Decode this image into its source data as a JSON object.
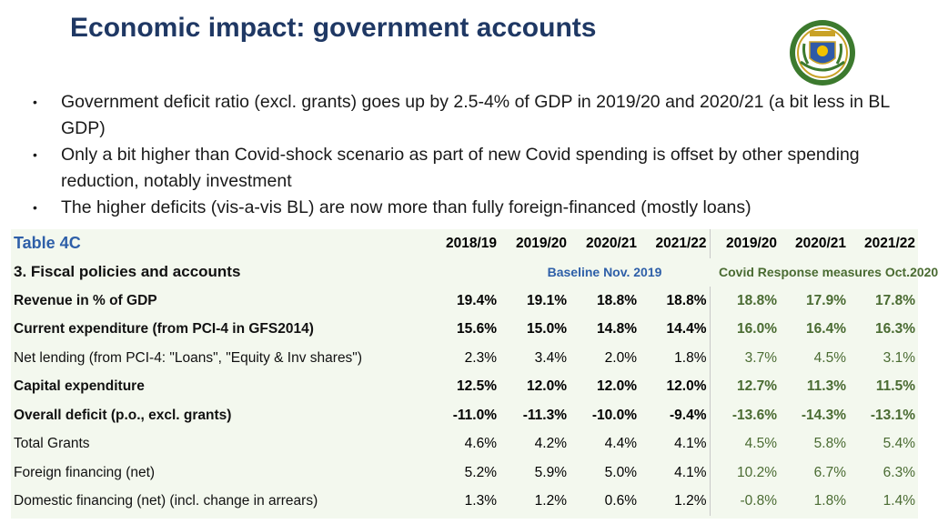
{
  "slide": {
    "title": "Economic impact: government accounts",
    "seal_icon": "rwanda-coat-of-arms"
  },
  "bullets": [
    "Government deficit ratio (excl. grants) goes up by 2.5-4% of GDP in 2019/20 and 2020/21 (a bit less in BL GDP)",
    "Only a bit higher than Covid-shock scenario as part of new Covid spending is offset by other spending reduction, notably investment",
    "The higher deficits (vis-a-vis BL) are now more than fully foreign-financed (mostly loans)"
  ],
  "table": {
    "label": "Table 4C",
    "section": "3. Fiscal policies and accounts",
    "years": [
      "2018/19",
      "2019/20",
      "2020/21",
      "2021/22",
      "2019/20",
      "2020/21",
      "2021/22"
    ],
    "scenario_baseline": "Baseline Nov. 2019",
    "scenario_covid": "Covid Response measures Oct.2020",
    "rows": [
      {
        "label": "Revenue in % of GDP",
        "bold": true,
        "values": [
          "19.4%",
          "19.1%",
          "18.8%",
          "18.8%",
          "18.8%",
          "17.9%",
          "17.8%"
        ]
      },
      {
        "label": "Current expenditure (from PCI-4 in GFS2014)",
        "bold": true,
        "values": [
          "15.6%",
          "15.0%",
          "14.8%",
          "14.4%",
          "16.0%",
          "16.4%",
          "16.3%"
        ]
      },
      {
        "label": "Net lending (from PCI-4: \"Loans\", \"Equity & Inv shares\")",
        "bold": false,
        "values": [
          "2.3%",
          "3.4%",
          "2.0%",
          "1.8%",
          "3.7%",
          "4.5%",
          "3.1%"
        ]
      },
      {
        "label": "Capital expenditure",
        "bold": true,
        "values": [
          "12.5%",
          "12.0%",
          "12.0%",
          "12.0%",
          "12.7%",
          "11.3%",
          "11.5%"
        ]
      },
      {
        "label": "Overall deficit (p.o., excl. grants)",
        "bold": true,
        "values": [
          "-11.0%",
          "-11.3%",
          "-10.0%",
          "-9.4%",
          "-13.6%",
          "-14.3%",
          "-13.1%"
        ]
      },
      {
        "label": "Total Grants",
        "bold": false,
        "values": [
          "4.6%",
          "4.2%",
          "4.4%",
          "4.1%",
          "4.5%",
          "5.8%",
          "5.4%"
        ]
      },
      {
        "label": "Foreign financing (net)",
        "bold": false,
        "values": [
          "5.2%",
          "5.9%",
          "5.0%",
          "4.1%",
          "10.2%",
          "6.7%",
          "6.3%"
        ]
      },
      {
        "label": "Domestic financing (net) (incl. change in arrears)",
        "bold": false,
        "values": [
          "1.3%",
          "1.2%",
          "0.6%",
          "1.2%",
          "-0.8%",
          "1.8%",
          "1.4%"
        ]
      }
    ]
  },
  "colors": {
    "title": "#1f3864",
    "baseline_accent": "#2e5fa8",
    "covid_accent": "#4a6b32",
    "table_bg": "#f3f8ee"
  }
}
